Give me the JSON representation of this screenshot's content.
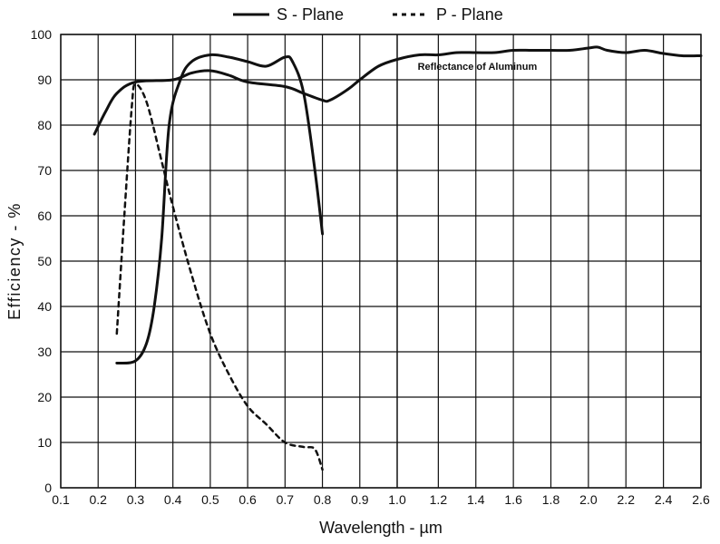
{
  "chart_data": {
    "type": "line",
    "xlabel": "Wavelength - µm",
    "ylabel": "Efficiency - %",
    "ylim": [
      0,
      100
    ],
    "grid": true,
    "legend_position": "top-center",
    "x_segments": [
      {
        "range": [
          0.1,
          1.0
        ],
        "ticks": [
          "0.1",
          "0.2",
          "0.3",
          "0.4",
          "0.5",
          "0.6",
          "0.7",
          "0.8",
          "0.9"
        ]
      },
      {
        "range": [
          1.0,
          2.6
        ],
        "ticks": [
          "1.0",
          "1.2",
          "1.4",
          "1.6",
          "1.8",
          "2.0",
          "2.2",
          "2.4",
          "2.6"
        ]
      }
    ],
    "y_ticks": [
      "0",
      "10",
      "20",
      "30",
      "40",
      "50",
      "60",
      "70",
      "80",
      "90",
      "100"
    ],
    "series": [
      {
        "name": "S - Plane",
        "style": "solid",
        "color": "#111111",
        "points": [
          [
            0.25,
            27.5
          ],
          [
            0.3,
            28
          ],
          [
            0.33,
            32
          ],
          [
            0.35,
            40
          ],
          [
            0.37,
            55
          ],
          [
            0.39,
            80
          ],
          [
            0.42,
            90
          ],
          [
            0.45,
            94
          ],
          [
            0.5,
            95.5
          ],
          [
            0.55,
            95
          ],
          [
            0.6,
            94
          ],
          [
            0.65,
            93
          ],
          [
            0.7,
            95
          ],
          [
            0.72,
            94
          ],
          [
            0.75,
            87
          ],
          [
            0.78,
            70
          ],
          [
            0.8,
            56
          ]
        ]
      },
      {
        "name": "P - Plane",
        "style": "dashed",
        "color": "#111111",
        "points": [
          [
            0.25,
            34
          ],
          [
            0.27,
            60
          ],
          [
            0.29,
            84
          ],
          [
            0.3,
            89
          ],
          [
            0.33,
            85
          ],
          [
            0.37,
            72
          ],
          [
            0.4,
            62
          ],
          [
            0.45,
            47
          ],
          [
            0.5,
            34
          ],
          [
            0.55,
            25
          ],
          [
            0.6,
            18
          ],
          [
            0.65,
            14
          ],
          [
            0.7,
            10
          ],
          [
            0.75,
            9
          ],
          [
            0.78,
            8.5
          ],
          [
            0.8,
            4
          ]
        ]
      },
      {
        "name": "Reflectance of Aluminum",
        "style": "solid",
        "color": "#111111",
        "points": [
          [
            0.19,
            78
          ],
          [
            0.22,
            83
          ],
          [
            0.25,
            87
          ],
          [
            0.3,
            89.5
          ],
          [
            0.4,
            90
          ],
          [
            0.45,
            91.5
          ],
          [
            0.5,
            92
          ],
          [
            0.55,
            91
          ],
          [
            0.6,
            89.5
          ],
          [
            0.7,
            88.5
          ],
          [
            0.75,
            87
          ],
          [
            0.8,
            85.5
          ],
          [
            0.82,
            85.5
          ],
          [
            0.87,
            88
          ],
          [
            0.9,
            90
          ],
          [
            0.95,
            93
          ],
          [
            1.0,
            94.5
          ],
          [
            1.1,
            95.5
          ],
          [
            1.2,
            95.5
          ],
          [
            1.3,
            96
          ],
          [
            1.4,
            96
          ],
          [
            1.5,
            96
          ],
          [
            1.6,
            96.5
          ],
          [
            1.7,
            96.5
          ],
          [
            1.8,
            96.5
          ],
          [
            1.9,
            96.5
          ],
          [
            2.0,
            97
          ],
          [
            2.05,
            97.2
          ],
          [
            2.1,
            96.5
          ],
          [
            2.2,
            96
          ],
          [
            2.3,
            96.5
          ],
          [
            2.4,
            95.8
          ],
          [
            2.5,
            95.3
          ],
          [
            2.6,
            95.3
          ]
        ]
      }
    ],
    "annotations": [
      {
        "text": "Reflectance of Aluminum",
        "x": 1.09,
        "y": 92.2
      }
    ]
  }
}
